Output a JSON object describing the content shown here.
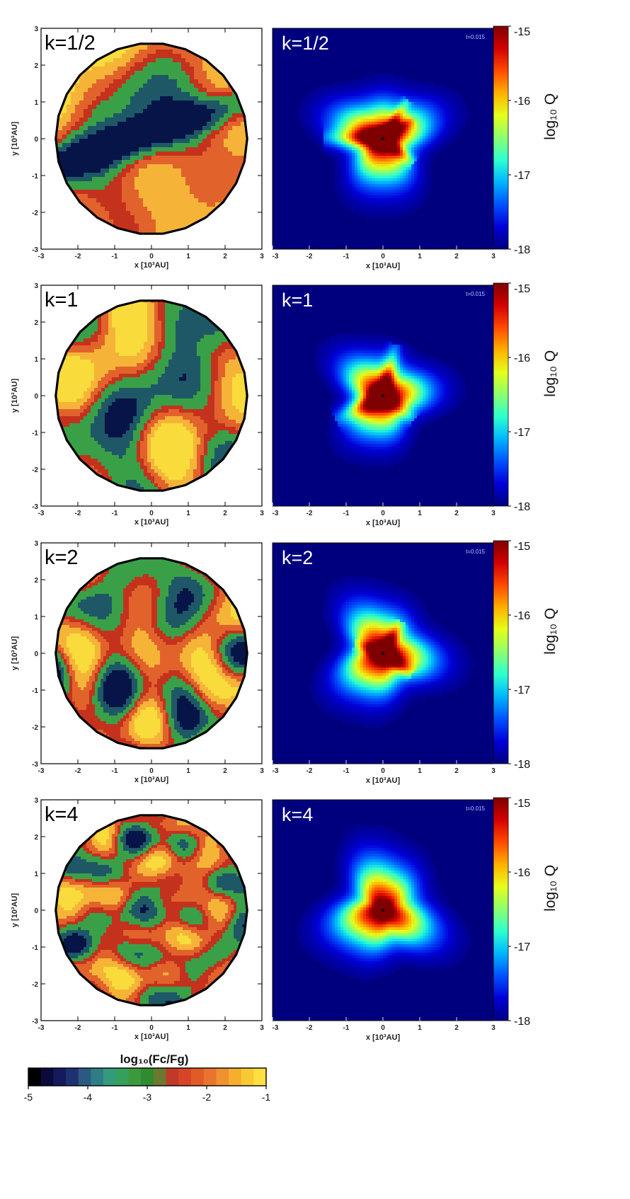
{
  "chart_data": [
    {
      "type": "heatmap",
      "panel_label": "k=1/2",
      "xlabel": "x [10³AU]",
      "ylabel": "y [10³AU]",
      "xlim": [
        -3,
        3
      ],
      "ylim": [
        -3,
        3
      ],
      "xticks": [
        "-3",
        "-2",
        "-1",
        "0",
        "1",
        "2",
        "3"
      ],
      "yticks": [
        "-3",
        "-2",
        "-1",
        "0",
        "1",
        "2",
        "3"
      ],
      "shape": "polygonal disc, radius ~2.6",
      "colorbar": "shared log10(Fc/Fg)"
    },
    {
      "type": "heatmap",
      "panel_label": "k=1/2",
      "xlabel": "x [10³AU]",
      "xlim": [
        -3,
        3
      ],
      "ylim": [
        -3,
        3
      ],
      "xticks": [
        "-3",
        "-2",
        "-1",
        "0",
        "1",
        "2",
        "3"
      ],
      "time_label": "t=0.015",
      "colorbar_label": "log₁₀ Q",
      "colorbar_ticks": [
        "-15",
        "-16",
        "-17",
        "-18"
      ],
      "colorbar_range": [
        -18,
        -15
      ]
    },
    {
      "type": "heatmap",
      "panel_label": "k=1",
      "xlabel": "x [10³AU]",
      "ylabel": "y [10³AU]",
      "xlim": [
        -3,
        3
      ],
      "ylim": [
        -3,
        3
      ],
      "xticks": [
        "-3",
        "-2",
        "-1",
        "0",
        "1",
        "2",
        "3"
      ],
      "yticks": [
        "-3",
        "-2",
        "-1",
        "0",
        "1",
        "2",
        "3"
      ],
      "shape": "polygonal disc, radius ~2.6",
      "colorbar": "shared log10(Fc/Fg)"
    },
    {
      "type": "heatmap",
      "panel_label": "k=1",
      "xlabel": "x [10³AU]",
      "xlim": [
        -3,
        3
      ],
      "ylim": [
        -3,
        3
      ],
      "xticks": [
        "-3",
        "-2",
        "-1",
        "0",
        "1",
        "2",
        "3"
      ],
      "time_label": "t=0.015",
      "colorbar_label": "log₁₀ Q",
      "colorbar_ticks": [
        "-15",
        "-16",
        "-17",
        "-18"
      ],
      "colorbar_range": [
        -18,
        -15
      ]
    },
    {
      "type": "heatmap",
      "panel_label": "k=2",
      "xlabel": "x [10³AU]",
      "ylabel": "y [10³AU]",
      "xlim": [
        -3,
        3
      ],
      "ylim": [
        -3,
        3
      ],
      "xticks": [
        "-3",
        "-2",
        "-1",
        "0",
        "1",
        "2",
        "3"
      ],
      "yticks": [
        "-3",
        "-2",
        "-1",
        "0",
        "1",
        "2",
        "3"
      ],
      "shape": "polygonal disc, radius ~2.6",
      "colorbar": "shared log10(Fc/Fg)"
    },
    {
      "type": "heatmap",
      "panel_label": "k=2",
      "xlabel": "x [10³AU]",
      "xlim": [
        -3,
        3
      ],
      "ylim": [
        -3,
        3
      ],
      "xticks": [
        "-3",
        "-2",
        "-1",
        "0",
        "1",
        "2",
        "3"
      ],
      "time_label": "t=0.015",
      "colorbar_label": "log₁₀ Q",
      "colorbar_ticks": [
        "-15",
        "-16",
        "-17",
        "-18"
      ],
      "colorbar_range": [
        -18,
        -15
      ]
    },
    {
      "type": "heatmap",
      "panel_label": "k=4",
      "xlabel": "x [10³AU]",
      "ylabel": "y [10³AU]",
      "xlim": [
        -3,
        3
      ],
      "ylim": [
        -3,
        3
      ],
      "xticks": [
        "-3",
        "-2",
        "-1",
        "0",
        "1",
        "2",
        "3"
      ],
      "yticks": [
        "-3",
        "-2",
        "-1",
        "0",
        "1",
        "2",
        "3"
      ],
      "shape": "polygonal disc, radius ~2.6",
      "colorbar": "shared log10(Fc/Fg)"
    },
    {
      "type": "heatmap",
      "panel_label": "k=4",
      "xlabel": "x [10³AU]",
      "xlim": [
        -3,
        3
      ],
      "ylim": [
        -3,
        3
      ],
      "xticks": [
        "-3",
        "-2",
        "-1",
        "0",
        "1",
        "2",
        "3"
      ],
      "time_label": "t=0.015",
      "colorbar_label": "log₁₀ Q",
      "colorbar_ticks": [
        "-15",
        "-16",
        "-17",
        "-18"
      ],
      "colorbar_range": [
        -18,
        -15
      ]
    }
  ],
  "bottom_colorbar": {
    "label": "log₁₀(Fc/Fg)",
    "ticks": [
      "-5",
      "-4",
      "-3",
      "-2",
      "-1"
    ],
    "range": [
      -5,
      -1
    ],
    "colors": [
      "#000000",
      "#0a0a3c",
      "#141a5c",
      "#1e3272",
      "#2a5a80",
      "#2f7d84",
      "#349a7e",
      "#36a05a",
      "#3c9a3c",
      "#2f8a30",
      "#6b7a2e",
      "#c0392b",
      "#d94428",
      "#e25a28",
      "#e8742e",
      "#f0902f",
      "#f6ae2f",
      "#f9c933",
      "#ffe040"
    ]
  },
  "colormaps": {
    "q_jet": [
      "#00007f",
      "#0000d8",
      "#0050ff",
      "#00b4ff",
      "#2cffd0",
      "#8cff70",
      "#e4ff1a",
      "#ffb000",
      "#ff4a00",
      "#d40000",
      "#7f0000"
    ],
    "fc_disc": [
      "#f9dc3c",
      "#f5b438",
      "#e2622c",
      "#c4321d",
      "#3aa048",
      "#1e5866",
      "#061448"
    ]
  }
}
